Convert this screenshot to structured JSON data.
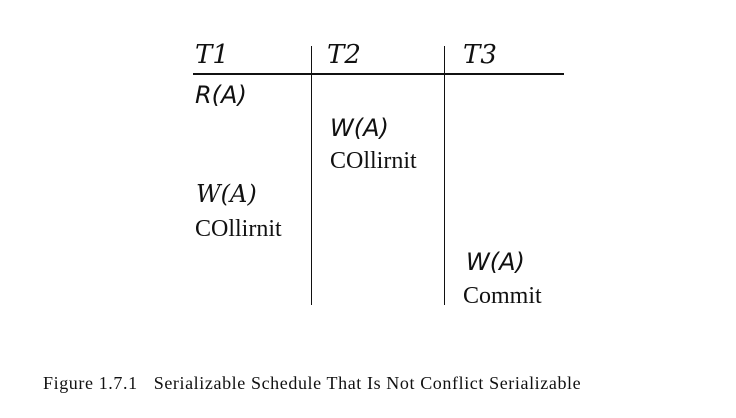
{
  "schedule": {
    "headers": [
      "T1",
      "T2",
      "T3"
    ],
    "operations": [
      {
        "column": "T1",
        "text": "R(A)"
      },
      {
        "column": "T2",
        "text": "W(A)"
      },
      {
        "column": "T2",
        "text": "COllirnit"
      },
      {
        "column": "T1",
        "text": "W(A)"
      },
      {
        "column": "T1",
        "text": "COllirnit"
      },
      {
        "column": "T3",
        "text": "W(A)"
      },
      {
        "column": "T3",
        "text": "Commit"
      }
    ]
  },
  "caption": {
    "label": "Figure 1.7.1",
    "text": "Serializable Schedule That Is Not Conflict Serializable"
  }
}
